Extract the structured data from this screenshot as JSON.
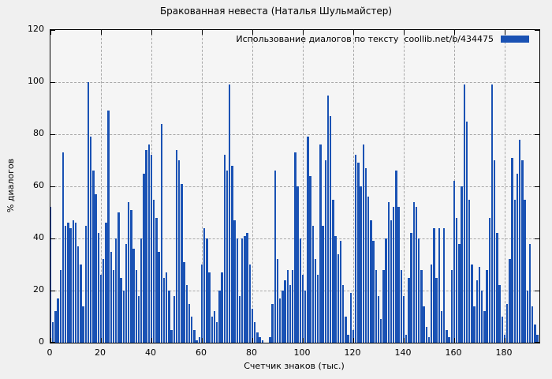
{
  "chart_data": {
    "type": "bar",
    "title": "Бракованная невеста (Наталья Шульмайстер)",
    "legend_label": "Использование диалогов по тексту  coollib.net/b/434475",
    "xlabel": "Счетчик знаков (тыс.)",
    "ylabel": "% диалогов",
    "xlim": [
      0,
      193.75
    ],
    "ylim": [
      0,
      120
    ],
    "x_ticks": [
      0,
      20,
      40,
      60,
      80,
      100,
      120,
      140,
      160,
      180
    ],
    "y_ticks": [
      0,
      20,
      40,
      60,
      80,
      100,
      120
    ],
    "grid": true,
    "legend_position": "top-right-inside",
    "x_start": 0,
    "x_step": 1,
    "values": [
      52,
      8,
      12,
      17,
      28,
      73,
      45,
      46,
      44,
      47,
      46,
      37,
      30,
      14,
      45,
      100,
      79,
      66,
      57,
      42,
      26,
      32,
      46,
      89,
      35,
      28,
      40,
      50,
      25,
      20,
      38,
      54,
      51,
      36,
      28,
      18,
      40,
      65,
      74,
      76,
      72,
      55,
      48,
      35,
      84,
      25,
      27,
      20,
      5,
      18,
      74,
      70,
      61,
      31,
      22,
      15,
      10,
      5,
      1,
      2,
      30,
      44,
      40,
      27,
      10,
      12,
      8,
      20,
      27,
      72,
      66,
      99,
      68,
      47,
      40,
      18,
      40,
      41,
      42,
      30,
      13,
      8,
      4,
      2,
      1,
      0,
      0,
      2,
      15,
      66,
      32,
      17,
      20,
      24,
      28,
      22,
      28,
      73,
      60,
      40,
      26,
      20,
      79,
      64,
      45,
      32,
      26,
      76,
      45,
      70,
      95,
      87,
      55,
      41,
      34,
      39,
      22,
      10,
      3,
      19,
      5,
      72,
      69,
      60,
      76,
      67,
      56,
      47,
      39,
      28,
      18,
      9,
      28,
      40,
      54,
      47,
      52,
      66,
      52,
      28,
      18,
      3,
      25,
      42,
      54,
      52,
      40,
      28,
      14,
      6,
      2,
      30,
      44,
      25,
      44,
      12,
      44,
      5,
      2,
      28,
      62,
      48,
      38,
      60,
      99,
      85,
      55,
      30,
      14,
      24,
      29,
      20,
      12,
      28,
      48,
      99,
      70,
      42,
      22,
      10,
      3,
      15,
      32,
      71,
      55,
      65,
      78,
      70,
      55,
      20,
      38,
      14,
      7,
      3
    ]
  },
  "colors": {
    "background": "#f0f0f0",
    "plot_background": "#f5f5f5",
    "bar": "#1a52b4",
    "grid": "#a8a8a8",
    "frame": "#000000",
    "text": "#000000"
  }
}
